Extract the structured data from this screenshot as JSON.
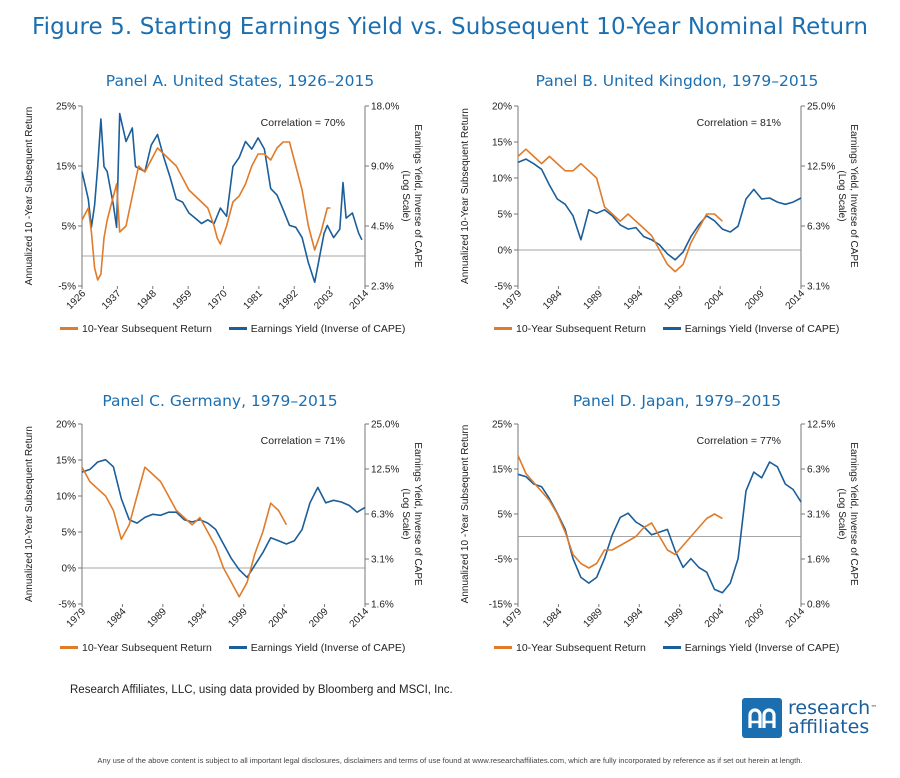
{
  "figure_title": "Figure 5. Starting Earnings Yield vs. Subsequent 10-Year Nominal Return",
  "source_note": "Research Affiliates, LLC, using data provided by Bloomberg and MSCI, Inc.",
  "disclaimer": "Any use of the above content is subject to all important legal disclosures, disclaimers and terms of use found at www.researchaffiliates.com, which are fully incorporated by reference as if set out herein at length.",
  "logo": {
    "line1": "research",
    "line2": "affiliates",
    "tm": "™"
  },
  "colors": {
    "return_series": "#e07b2a",
    "yield_series": "#1b5e9a",
    "title": "#1b6fb1"
  },
  "chart_data": [
    {
      "type": "line",
      "panel": "A",
      "title": "Panel A. United States, 1926–2015",
      "annotation": "Correlation = 70%",
      "ylabel": "Annualized 10 -Year Subsequent Return",
      "y2label_line1": "Earnings Yield, Inverse of CAPE",
      "y2label_line2": "(Log Scale)",
      "xlim": [
        1926,
        2016
      ],
      "xticks": [
        "1926",
        "1937",
        "1948",
        "1959",
        "1970",
        "1981",
        "1992",
        "2003",
        "2014"
      ],
      "ylim": [
        -5,
        25
      ],
      "yticks": [
        "25%",
        "15%",
        "5%",
        "-5%"
      ],
      "y2_log_range": [
        2.3,
        18.0
      ],
      "y2ticks": [
        "18.0%",
        "9.0%",
        "4.5%",
        "2.3%"
      ],
      "grid": false,
      "legend_position": "bottom",
      "series": [
        {
          "name": "10-Year Subsequent Return",
          "x": [
            1926,
            1928,
            1929,
            1930,
            1931,
            1932,
            1933,
            1934,
            1935,
            1937,
            1938,
            1940,
            1942,
            1944,
            1946,
            1948,
            1950,
            1952,
            1954,
            1956,
            1958,
            1960,
            1962,
            1964,
            1966,
            1968,
            1969,
            1970,
            1972,
            1974,
            1976,
            1978,
            1980,
            1982,
            1984,
            1986,
            1988,
            1990,
            1992,
            1994,
            1996,
            1998,
            2000,
            2002,
            2004,
            2005
          ],
          "y": [
            6,
            8,
            4,
            -2,
            -4,
            -3,
            3,
            6,
            8,
            12,
            4,
            5,
            10,
            15,
            14,
            16,
            18,
            17,
            16,
            15,
            13,
            11,
            10,
            9,
            8,
            5,
            3,
            2,
            5,
            9,
            10,
            12,
            15,
            17,
            17,
            16,
            18,
            19,
            19,
            15,
            11,
            5,
            1,
            4,
            8,
            8
          ]
        },
        {
          "name": "Earnings Yield (Inverse of CAPE)",
          "x": [
            1926,
            1928,
            1929,
            1930,
            1931,
            1932,
            1933,
            1934,
            1936,
            1937,
            1938,
            1940,
            1942,
            1943,
            1946,
            1948,
            1950,
            1952,
            1954,
            1956,
            1958,
            1960,
            1962,
            1964,
            1966,
            1968,
            1970,
            1972,
            1974,
            1976,
            1978,
            1980,
            1982,
            1984,
            1986,
            1988,
            1990,
            1992,
            1994,
            1996,
            1998,
            2000,
            2002,
            2003,
            2004,
            2006,
            2008,
            2009,
            2010,
            2012,
            2014,
            2015
          ],
          "y": [
            8.5,
            6.2,
            4.5,
            5.8,
            9.0,
            15.5,
            9.0,
            8.5,
            5.8,
            4.5,
            16.5,
            12.0,
            14.0,
            9.0,
            8.5,
            11.5,
            13.0,
            10.0,
            8.0,
            6.2,
            6.0,
            5.3,
            5.0,
            4.7,
            4.9,
            4.7,
            5.6,
            5.1,
            9.0,
            10.0,
            12.0,
            11.0,
            12.5,
            11.0,
            7.0,
            6.5,
            5.5,
            4.6,
            4.5,
            4.0,
            3.0,
            2.4,
            3.5,
            4.2,
            4.6,
            4.0,
            4.4,
            7.5,
            5.0,
            5.3,
            4.2,
            3.9
          ]
        }
      ]
    },
    {
      "type": "line",
      "panel": "B",
      "title": "Panel B. United Kingdon, 1979–2015",
      "annotation": "Correlation = 81%",
      "ylabel": "Annualized 10-Year Subsequent Return",
      "y2label_line1": "Earnings Yield, Inverse of CAPE",
      "y2label_line2": "(Log Scale)",
      "xlim": [
        1979,
        2015
      ],
      "xticks": [
        "1979",
        "1984",
        "1989",
        "1994",
        "1999",
        "2004",
        "2009",
        "2014"
      ],
      "ylim": [
        -5,
        20
      ],
      "yticks": [
        "20%",
        "15%",
        "10%",
        "5%",
        "0%",
        "-5%"
      ],
      "y2_log_range": [
        3.1,
        25.0
      ],
      "y2ticks": [
        "25.0%",
        "12.5%",
        "6.3%",
        "3.1%"
      ],
      "grid": false,
      "legend_position": "bottom",
      "series": [
        {
          "name": "10-Year Subsequent Return",
          "x": [
            1979,
            1980,
            1981,
            1982,
            1983,
            1984,
            1985,
            1986,
            1987,
            1988,
            1989,
            1990,
            1991,
            1992,
            1993,
            1994,
            1995,
            1996,
            1997,
            1998,
            1999,
            2000,
            2001,
            2002,
            2003,
            2004,
            2005
          ],
          "y": [
            13,
            14,
            13,
            12,
            13,
            12,
            11,
            11,
            12,
            11,
            10,
            6,
            5,
            4,
            5,
            4,
            3,
            2,
            0,
            -2,
            -3,
            -2,
            1,
            3,
            5,
            5,
            4
          ]
        },
        {
          "name": "Earnings Yield (Inverse of CAPE)",
          "x": [
            1979,
            1980,
            1981,
            1982,
            1983,
            1984,
            1985,
            1986,
            1987,
            1988,
            1989,
            1990,
            1991,
            1992,
            1993,
            1994,
            1995,
            1996,
            1997,
            1998,
            1999,
            2000,
            2001,
            2002,
            2003,
            2004,
            2005,
            2006,
            2007,
            2008,
            2009,
            2010,
            2011,
            2012,
            2013,
            2014,
            2015
          ],
          "y": [
            13.0,
            13.5,
            12.8,
            12.0,
            10.0,
            8.5,
            8.0,
            7.0,
            5.3,
            7.5,
            7.2,
            7.5,
            7.0,
            6.3,
            6.0,
            6.1,
            5.5,
            5.3,
            5.0,
            4.5,
            4.2,
            4.6,
            5.5,
            6.3,
            7.0,
            6.6,
            6.0,
            5.8,
            6.2,
            8.5,
            9.5,
            8.5,
            8.6,
            8.2,
            8.0,
            8.2,
            8.6
          ]
        }
      ]
    },
    {
      "type": "line",
      "panel": "C",
      "title": "Panel C. Germany, 1979–2015",
      "annotation": "Correlation = 71%",
      "ylabel": "Annualized 10-Year Subsequent Return",
      "y2label_line1": "Earnings Yield, Inverse of CAPE",
      "y2label_line2": "(Log Scale)",
      "xlim": [
        1979,
        2015
      ],
      "xticks": [
        "1979",
        "1984",
        "1989",
        "1994",
        "1999",
        "2004",
        "2009",
        "2014"
      ],
      "ylim": [
        -5,
        20
      ],
      "yticks": [
        "20%",
        "15%",
        "10%",
        "5%",
        "0%",
        "-5%"
      ],
      "y2_log_range": [
        1.6,
        25.0
      ],
      "y2ticks": [
        "25.0%",
        "12.5%",
        "6.3%",
        "3.1%",
        "1.6%"
      ],
      "grid": false,
      "legend_position": "bottom",
      "series": [
        {
          "name": "10-Year Subsequent Return",
          "x": [
            1979,
            1980,
            1981,
            1982,
            1983,
            1984,
            1985,
            1986,
            1987,
            1988,
            1989,
            1990,
            1991,
            1992,
            1993,
            1994,
            1995,
            1996,
            1997,
            1998,
            1999,
            2000,
            2001,
            2002,
            2003,
            2004,
            2005
          ],
          "y": [
            14,
            12,
            11,
            10,
            8,
            4,
            6,
            10,
            14,
            13,
            12,
            10,
            8,
            7,
            6,
            7,
            5,
            3,
            0,
            -2,
            -4,
            -2,
            2,
            5,
            9,
            8,
            6
          ]
        },
        {
          "name": "Earnings Yield (Inverse of CAPE)",
          "x": [
            1979,
            1980,
            1981,
            1982,
            1983,
            1984,
            1985,
            1986,
            1987,
            1988,
            1989,
            1990,
            1991,
            1992,
            1993,
            1994,
            1995,
            1996,
            1997,
            1998,
            1999,
            2000,
            2001,
            2002,
            2003,
            2004,
            2005,
            2006,
            2007,
            2008,
            2009,
            2010,
            2011,
            2012,
            2013,
            2014,
            2015
          ],
          "y": [
            12.0,
            12.5,
            14.0,
            14.5,
            13.0,
            8.0,
            5.8,
            5.5,
            6.0,
            6.3,
            6.2,
            6.5,
            6.5,
            5.8,
            5.6,
            5.8,
            5.5,
            5.0,
            4.0,
            3.2,
            2.7,
            2.4,
            2.9,
            3.5,
            4.4,
            4.2,
            4.0,
            4.2,
            5.0,
            7.5,
            9.5,
            7.5,
            7.8,
            7.6,
            7.2,
            6.5,
            7.0
          ]
        }
      ]
    },
    {
      "type": "line",
      "panel": "D",
      "title": "Panel D. Japan, 1979–2015",
      "annotation": "Correlation = 77%",
      "ylabel": "Annualized 10 -Year Subsequent Return",
      "y2label_line1": "Earnings Yield, Inverse of CAPE",
      "y2label_line2": "(Log Scale)",
      "xlim": [
        1979,
        2015
      ],
      "xticks": [
        "1979",
        "1984",
        "1989",
        "1994",
        "1999",
        "2004",
        "2009",
        "2014"
      ],
      "ylim": [
        -15,
        25
      ],
      "yticks": [
        "25%",
        "15%",
        "5%",
        "-5%",
        "-15%"
      ],
      "y2_log_range": [
        0.8,
        12.5
      ],
      "y2ticks": [
        "12.5%",
        "6.3%",
        "3.1%",
        "1.6%",
        "0.8%"
      ],
      "grid": false,
      "legend_position": "bottom",
      "series": [
        {
          "name": "10-Year Subsequent Return",
          "x": [
            1979,
            1980,
            1981,
            1982,
            1983,
            1984,
            1985,
            1986,
            1987,
            1988,
            1989,
            1990,
            1991,
            1992,
            1993,
            1994,
            1995,
            1996,
            1997,
            1998,
            1999,
            2000,
            2001,
            2002,
            2003,
            2004,
            2005
          ],
          "y": [
            18,
            14,
            12,
            10,
            8,
            5,
            1,
            -4,
            -6,
            -7,
            -6,
            -3,
            -3,
            -2,
            -1,
            0,
            2,
            3,
            0,
            -3,
            -4,
            -2,
            0,
            2,
            4,
            5,
            4
          ]
        },
        {
          "name": "Earnings Yield (Inverse of CAPE)",
          "x": [
            1979,
            1980,
            1981,
            1982,
            1983,
            1984,
            1985,
            1986,
            1987,
            1988,
            1989,
            1990,
            1991,
            1992,
            1993,
            1994,
            1995,
            1996,
            1997,
            1998,
            1999,
            2000,
            2001,
            2002,
            2003,
            2004,
            2005,
            2006,
            2007,
            2008,
            2009,
            2010,
            2011,
            2012,
            2013,
            2014,
            2015
          ],
          "y": [
            5.8,
            5.6,
            5.0,
            4.8,
            4.0,
            3.2,
            2.5,
            1.6,
            1.2,
            1.1,
            1.2,
            1.6,
            2.3,
            3.0,
            3.2,
            2.8,
            2.6,
            2.3,
            2.4,
            2.5,
            1.8,
            1.4,
            1.6,
            1.4,
            1.3,
            1.0,
            0.95,
            1.1,
            1.6,
            4.5,
            6.0,
            5.5,
            7.0,
            6.5,
            5.0,
            4.6,
            3.8
          ]
        }
      ]
    }
  ]
}
